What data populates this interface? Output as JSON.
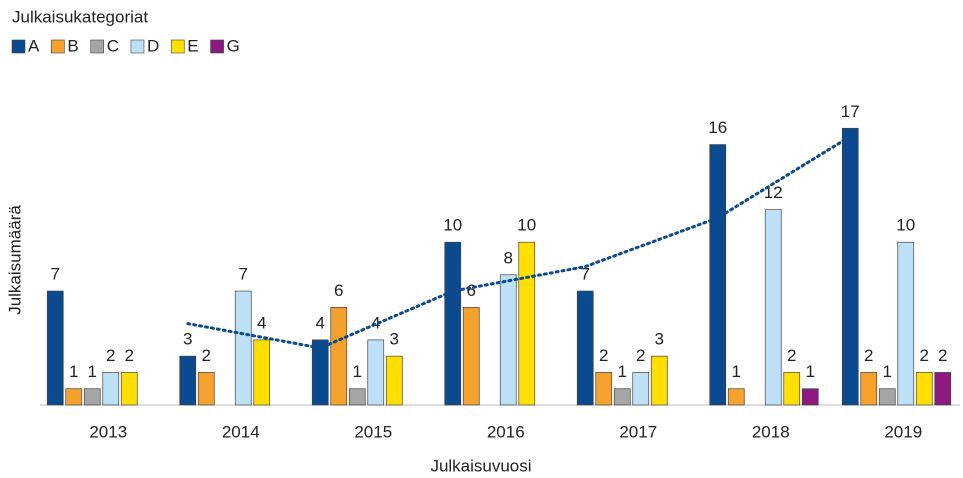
{
  "chart_data": {
    "type": "bar",
    "legend_title": "Julkaisukategoriat",
    "x_label": "Julkaisuvuosi",
    "y_label": "Julkaisumäärä",
    "categories": [
      "2013",
      "2014",
      "2015",
      "2016",
      "2017",
      "2018",
      "2019"
    ],
    "series": [
      {
        "name": "A",
        "color": "#0b4a8e",
        "values": [
          7,
          3,
          4,
          10,
          7,
          16,
          17
        ]
      },
      {
        "name": "B",
        "color": "#f4a22d",
        "values": [
          1,
          2,
          6,
          6,
          2,
          1,
          2
        ]
      },
      {
        "name": "C",
        "color": "#a5a5a5",
        "values": [
          1,
          null,
          1,
          null,
          1,
          null,
          1
        ]
      },
      {
        "name": "D",
        "color": "#bde0f7",
        "values": [
          2,
          7,
          4,
          8,
          2,
          12,
          10
        ]
      },
      {
        "name": "E",
        "color": "#ffdf00",
        "values": [
          2,
          4,
          3,
          10,
          3,
          2,
          2
        ]
      },
      {
        "name": "G",
        "color": "#8c1a80",
        "values": [
          null,
          null,
          null,
          null,
          null,
          1,
          2
        ]
      }
    ],
    "trendline": {
      "color": "#0b4a8e",
      "values": [
        null,
        5,
        3.5,
        7,
        8.5,
        11.5,
        16.5
      ]
    },
    "ylim": [
      0,
      18
    ],
    "legend": "top-left"
  }
}
